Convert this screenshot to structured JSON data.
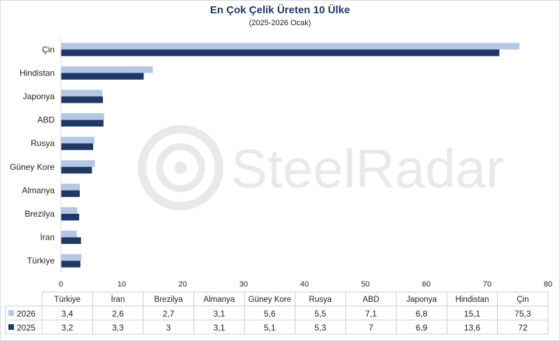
{
  "chart_data": {
    "type": "bar",
    "orientation": "horizontal",
    "title": "En Çok Çelik Üreten 10 Ülke",
    "subtitle": "(2025-2026 Ocak)",
    "categories": [
      "Türkiye",
      "İran",
      "Brezilya",
      "Almanya",
      "Güney Kore",
      "Rusya",
      "ABD",
      "Japonya",
      "Hindistan",
      "Çin"
    ],
    "series": [
      {
        "name": "2026",
        "color": "#b4c7e7",
        "values": [
          3.4,
          2.6,
          2.7,
          3.1,
          5.6,
          5.5,
          7.1,
          6.8,
          15.1,
          75.3
        ],
        "labels": [
          "3,4",
          "2,6",
          "2,7",
          "3,1",
          "5,6",
          "5,5",
          "7,1",
          "6,8",
          "15,1",
          "75,3"
        ]
      },
      {
        "name": "2025",
        "color": "#203864",
        "values": [
          3.2,
          3.3,
          3,
          3.1,
          5.1,
          5.3,
          7,
          6.9,
          13.6,
          72
        ],
        "labels": [
          "3,2",
          "3,3",
          "3",
          "3,1",
          "5,1",
          "5,3",
          "7",
          "6,9",
          "13,6",
          "72"
        ]
      }
    ],
    "xlim": [
      0,
      80
    ],
    "xticks": [
      0,
      10,
      20,
      30,
      40,
      50,
      60,
      70,
      80
    ],
    "grid": false,
    "legend": "data-table",
    "title_color": "#1f3864"
  },
  "watermark": "SteelRadar"
}
